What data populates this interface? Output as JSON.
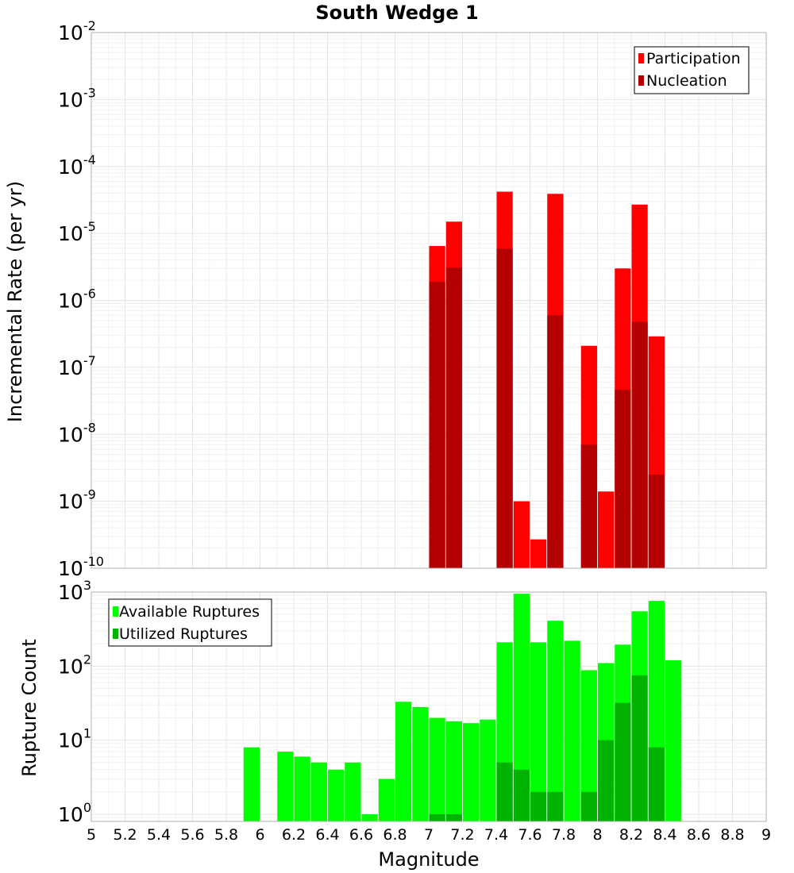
{
  "chart_data": [
    {
      "type": "bar",
      "title": "South Wedge 1",
      "xlabel": "",
      "ylabel": "Incremental Rate (per yr)",
      "yscale": "log",
      "xlim": [
        5,
        9
      ],
      "ylim": [
        1e-10,
        0.01
      ],
      "y_tick_exponents": [
        "-10",
        "-9",
        "-8",
        "-7",
        "-6",
        "-5",
        "-4",
        "-3",
        "-2"
      ],
      "grid": true,
      "legend_position": "top-right",
      "bar_width": 0.095,
      "series": [
        {
          "name": "Participation",
          "color": "#ff0000",
          "x": [
            7.05,
            7.15,
            7.45,
            7.55,
            7.65,
            7.75,
            7.95,
            8.05,
            8.15,
            8.25,
            8.35
          ],
          "values": [
            6.5e-06,
            1.5e-05,
            4.2e-05,
            1e-09,
            2.7e-10,
            3.9e-05,
            2.1e-07,
            1.4e-09,
            3e-06,
            2.7e-05,
            2.9e-07
          ]
        },
        {
          "name": "Nucleation",
          "color": "#b30000",
          "x": [
            7.05,
            7.15,
            7.45,
            7.75,
            7.95,
            8.15,
            8.25,
            8.35
          ],
          "values": [
            1.9e-06,
            3.1e-06,
            5.9e-06,
            6e-07,
            7e-09,
            4.6e-08,
            4.8e-07,
            2.5e-09
          ]
        }
      ]
    },
    {
      "type": "bar",
      "title": "",
      "xlabel": "Magnitude",
      "ylabel": "Rupture Count",
      "yscale": "log",
      "xlim": [
        5,
        9
      ],
      "ylim": [
        0.8,
        1000
      ],
      "x_ticks": [
        "5",
        "5.2",
        "5.4",
        "5.6",
        "5.8",
        "6",
        "6.2",
        "6.4",
        "6.6",
        "6.8",
        "7",
        "7.2",
        "7.4",
        "7.6",
        "7.8",
        "8",
        "8.2",
        "8.4",
        "8.6",
        "8.8",
        "9"
      ],
      "y_tick_exponents": [
        "0",
        "1",
        "2",
        "3"
      ],
      "grid": true,
      "legend_position": "top-left",
      "bar_width": 0.095,
      "series": [
        {
          "name": "Available Ruptures",
          "color": "#00ff00",
          "x": [
            5.95,
            6.15,
            6.25,
            6.35,
            6.45,
            6.55,
            6.65,
            6.75,
            6.85,
            6.95,
            7.05,
            7.15,
            7.25,
            7.35,
            7.45,
            7.55,
            7.65,
            7.75,
            7.85,
            7.95,
            8.05,
            8.15,
            8.25,
            8.35,
            8.45
          ],
          "values": [
            8,
            7,
            6,
            5,
            4,
            5,
            1,
            3,
            33,
            28,
            20,
            18,
            17,
            19,
            210,
            950,
            210,
            410,
            220,
            88,
            110,
            195,
            550,
            760,
            120
          ]
        },
        {
          "name": "Utilized Ruptures",
          "color": "#00b300",
          "x": [
            7.05,
            7.15,
            7.45,
            7.55,
            7.65,
            7.75,
            7.95,
            8.05,
            8.15,
            8.25,
            8.35
          ],
          "values": [
            1,
            1,
            5,
            4,
            2,
            2,
            2,
            10,
            32,
            75,
            8
          ]
        }
      ]
    }
  ]
}
